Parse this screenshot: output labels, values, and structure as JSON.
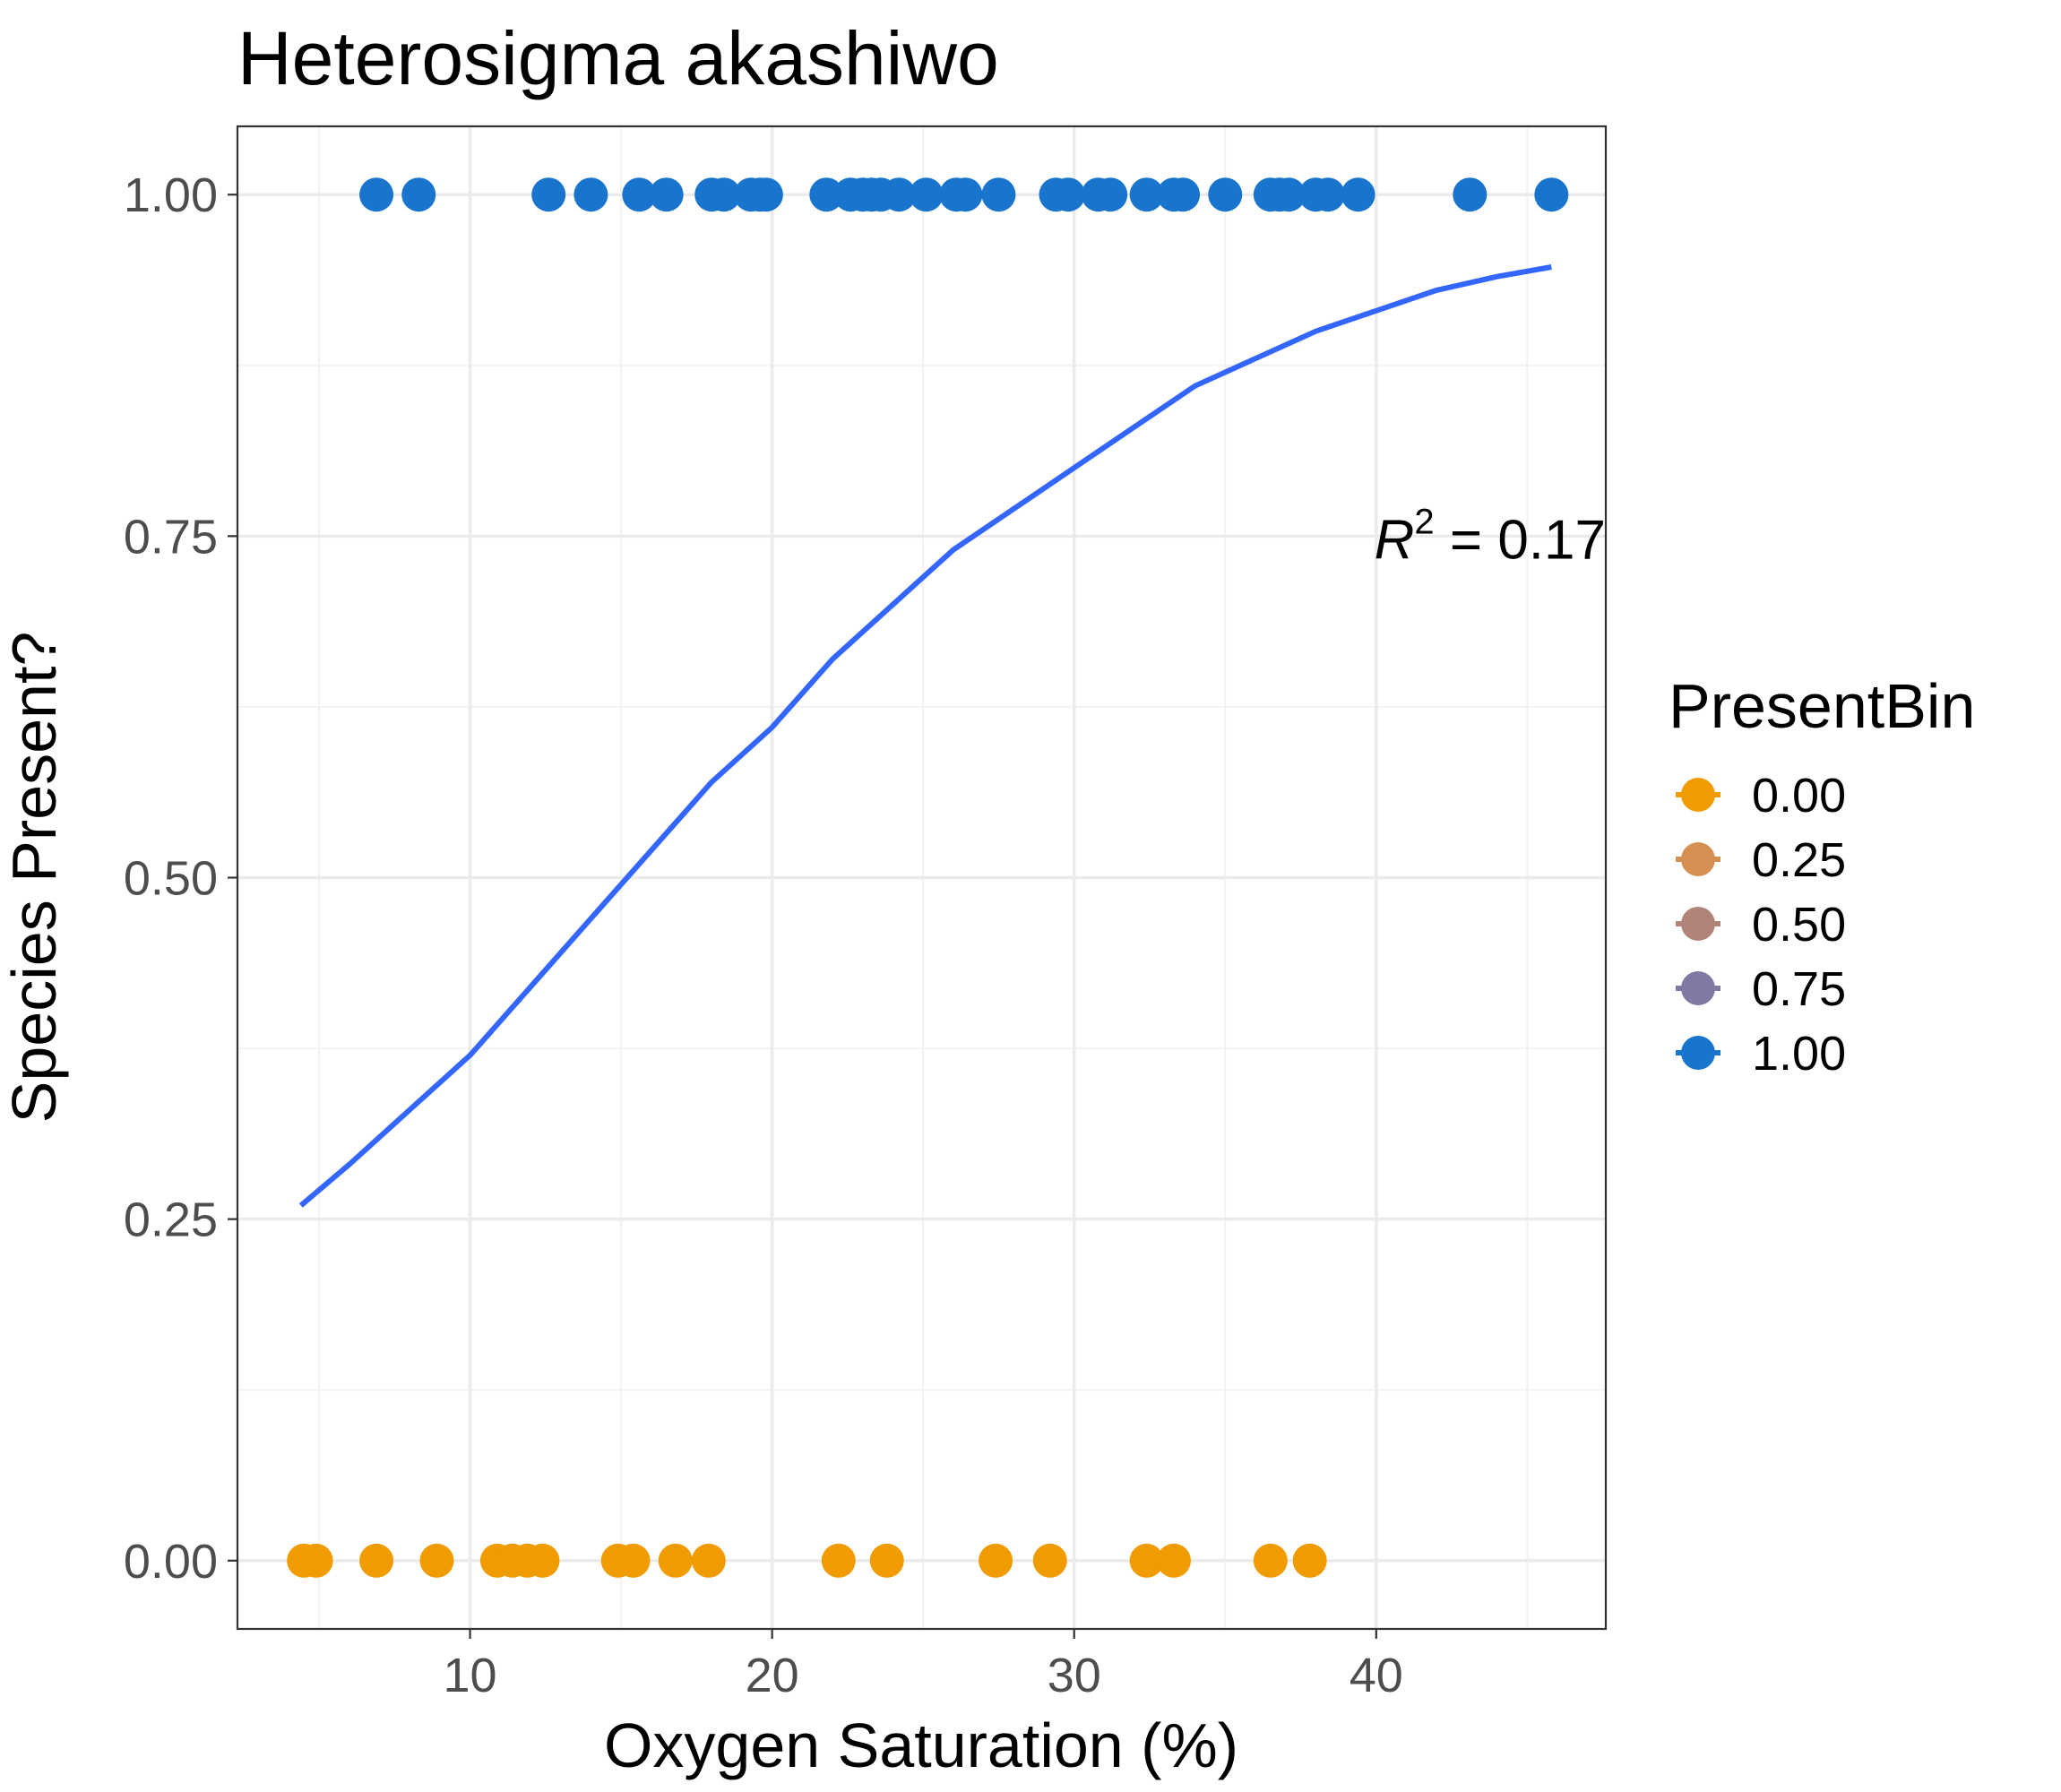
{
  "chart_data": {
    "type": "scatter",
    "title": "Heterosigma akashiwo",
    "xlabel": "Oxygen Saturation (%)",
    "ylabel": "Species Present?",
    "xlim": [
      2.3,
      47.6
    ],
    "ylim": [
      -0.05,
      1.05
    ],
    "x_ticks": [
      10,
      20,
      30,
      40
    ],
    "x_tick_labels": [
      "10",
      "20",
      "30",
      "40"
    ],
    "y_ticks": [
      0,
      0.25,
      0.5,
      0.75,
      1.0
    ],
    "y_tick_labels": [
      "0.00",
      "0.25",
      "0.50",
      "0.75",
      "1.00"
    ],
    "grid": true,
    "legend": {
      "title": "PresentBin",
      "placement": "right",
      "entries": [
        {
          "label": "0.00",
          "color": "#F09B00"
        },
        {
          "label": "0.25",
          "color": "#D58F50"
        },
        {
          "label": "0.50",
          "color": "#B08478"
        },
        {
          "label": "0.75",
          "color": "#8179A4"
        },
        {
          "label": "1.00",
          "color": "#1874CD"
        }
      ]
    },
    "series": [
      {
        "present_bin": 1.0,
        "color": "#1874CD",
        "x": [
          6.9,
          8.3,
          12.6,
          14.0,
          15.6,
          16.5,
          18.0,
          18.4,
          19.3,
          19.6,
          19.8,
          21.8,
          22.6,
          23.0,
          23.3,
          23.6,
          24.2,
          25.1,
          26.1,
          26.4,
          27.5,
          29.4,
          29.8,
          30.8,
          31.2,
          32.4,
          33.3,
          33.6,
          35.0,
          36.5,
          36.8,
          37.1,
          38.0,
          38.4,
          39.4,
          43.1,
          45.8
        ],
        "y": [
          1,
          1,
          1,
          1,
          1,
          1,
          1,
          1,
          1,
          1,
          1,
          1,
          1,
          1,
          1,
          1,
          1,
          1,
          1,
          1,
          1,
          1,
          1,
          1,
          1,
          1,
          1,
          1,
          1,
          1,
          1,
          1,
          1,
          1,
          1,
          1,
          1
        ]
      },
      {
        "present_bin": 0.0,
        "color": "#F09B00",
        "x": [
          4.5,
          4.9,
          6.9,
          8.9,
          10.9,
          11.4,
          11.9,
          12.4,
          14.9,
          15.4,
          16.8,
          17.9,
          22.2,
          23.8,
          27.4,
          29.2,
          32.4,
          33.3,
          36.5,
          37.8
        ],
        "y": [
          0,
          0,
          0,
          0,
          0,
          0,
          0,
          0,
          0,
          0,
          0,
          0,
          0,
          0,
          0,
          0,
          0,
          0,
          0,
          0
        ]
      }
    ],
    "fit_line": {
      "type": "logistic",
      "color": "#3366FF",
      "x": [
        4.4,
        6.0,
        8.0,
        10.0,
        12.0,
        14.0,
        16.0,
        18.0,
        20.0,
        22.0,
        24.0,
        26.0,
        28.0,
        30.0,
        32.0,
        34.0,
        36.0,
        38.0,
        40.0,
        42.0,
        44.0,
        45.8
      ],
      "y": [
        0.26,
        0.29,
        0.33,
        0.37,
        0.42,
        0.47,
        0.52,
        0.57,
        0.61,
        0.66,
        0.7,
        0.74,
        0.77,
        0.8,
        0.83,
        0.86,
        0.88,
        0.9,
        0.915,
        0.93,
        0.94,
        0.947
      ]
    },
    "annotation": {
      "var": "R",
      "sup": "2",
      "rest": " = 0.17",
      "x": 47.6,
      "y": 0.74
    }
  }
}
